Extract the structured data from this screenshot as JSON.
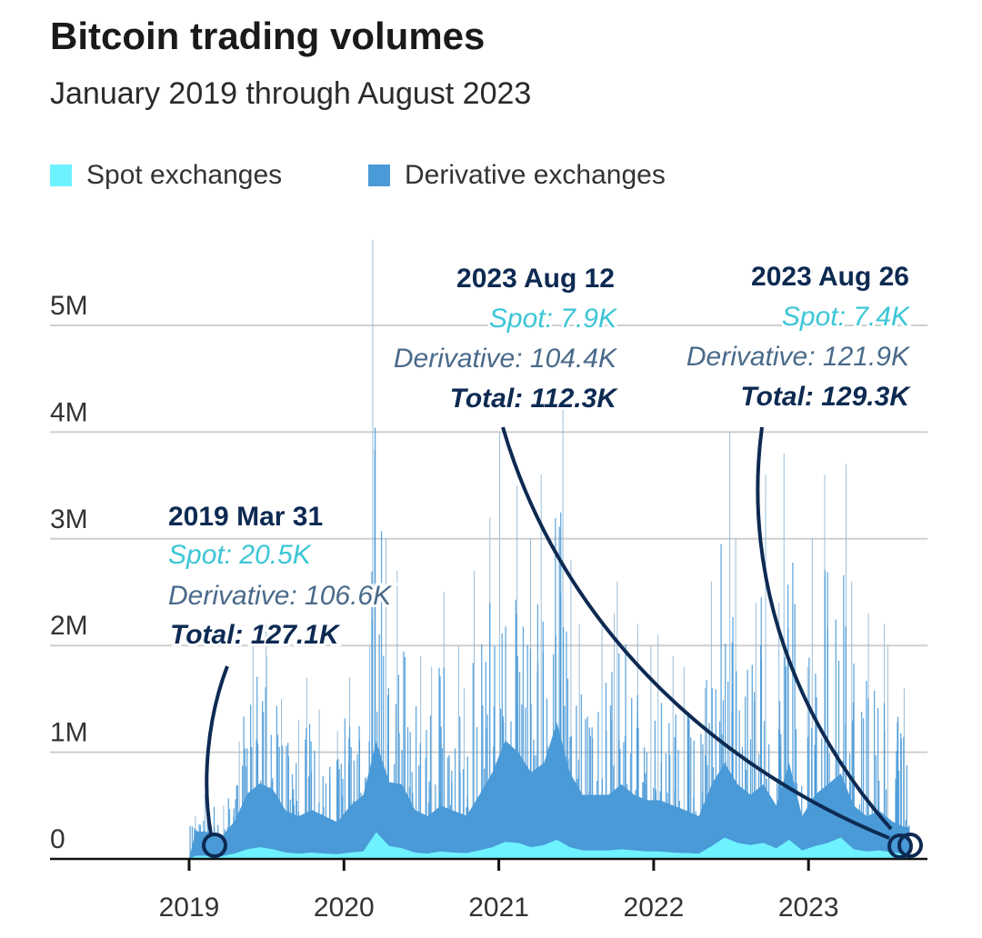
{
  "chart_data": {
    "type": "area",
    "title": "Bitcoin trading volumes",
    "subtitle": "January 2019 through August 2023",
    "stacked": true,
    "legend_position": "top-left",
    "grid": true,
    "ylim": [
      0,
      5500000
    ],
    "y_ticks": [
      {
        "value": 0,
        "label": "0"
      },
      {
        "value": 1000000,
        "label": "1M"
      },
      {
        "value": 2000000,
        "label": "2M"
      },
      {
        "value": 3000000,
        "label": "3M"
      },
      {
        "value": 4000000,
        "label": "4M"
      },
      {
        "value": 5000000,
        "label": "5M"
      }
    ],
    "x_ticks": [
      "2019",
      "2020",
      "2021",
      "2022",
      "2023"
    ],
    "x": [
      "2019-01",
      "2019-02",
      "2019-03",
      "2019-04",
      "2019-05",
      "2019-06",
      "2019-07",
      "2019-08",
      "2019-09",
      "2019-10",
      "2019-11",
      "2019-12",
      "2020-01",
      "2020-02",
      "2020-03",
      "2020-04",
      "2020-05",
      "2020-06",
      "2020-07",
      "2020-08",
      "2020-09",
      "2020-10",
      "2020-11",
      "2020-12",
      "2021-01",
      "2021-02",
      "2021-03",
      "2021-04",
      "2021-05",
      "2021-06",
      "2021-07",
      "2021-08",
      "2021-09",
      "2021-10",
      "2021-11",
      "2021-12",
      "2022-01",
      "2022-02",
      "2022-03",
      "2022-04",
      "2022-05",
      "2022-06",
      "2022-07",
      "2022-08",
      "2022-09",
      "2022-10",
      "2022-11",
      "2022-12",
      "2023-01",
      "2023-02",
      "2023-03",
      "2023-04",
      "2023-05",
      "2023-06",
      "2023-07",
      "2023-08"
    ],
    "series": [
      {
        "name": "Spot exchanges",
        "color": "#6ef2ff",
        "values": [
          30000,
          30000,
          25000,
          50000,
          90000,
          110000,
          90000,
          60000,
          50000,
          60000,
          50000,
          45000,
          60000,
          70000,
          250000,
          120000,
          100000,
          60000,
          50000,
          70000,
          60000,
          55000,
          80000,
          110000,
          160000,
          150000,
          110000,
          130000,
          180000,
          110000,
          80000,
          80000,
          80000,
          90000,
          80000,
          70000,
          70000,
          60000,
          55000,
          50000,
          120000,
          200000,
          150000,
          130000,
          150000,
          100000,
          180000,
          80000,
          120000,
          150000,
          200000,
          90000,
          70000,
          80000,
          60000,
          50000
        ]
      },
      {
        "name": "Derivative exchanges",
        "color": "#4a9ad8",
        "values": [
          230000,
          220000,
          180000,
          300000,
          520000,
          600000,
          560000,
          390000,
          350000,
          400000,
          350000,
          300000,
          440000,
          530000,
          850000,
          600000,
          600000,
          400000,
          350000,
          430000,
          390000,
          350000,
          520000,
          700000,
          950000,
          850000,
          700000,
          770000,
          1100000,
          700000,
          520000,
          520000,
          520000,
          610000,
          520000,
          480000,
          480000,
          440000,
          400000,
          350000,
          580000,
          700000,
          550000,
          470000,
          550000,
          400000,
          720000,
          320000,
          480000,
          550000,
          600000,
          410000,
          330000,
          370000,
          290000,
          250000
        ]
      }
    ],
    "peaks": [
      400000,
      600000,
      500000,
      1100000,
      2000000,
      2200000,
      1900000,
      1500000,
      1300000,
      1700000,
      1400000,
      1200000,
      1700000,
      2000000,
      5800000,
      3000000,
      2700000,
      1900000,
      1800000,
      2500000,
      2000000,
      1600000,
      2700000,
      3200000,
      4000000,
      3500000,
      3000000,
      3600000,
      4300000,
      2800000,
      2200000,
      2200000,
      2300000,
      2600000,
      2200000,
      2000000,
      2100000,
      1900000,
      1800000,
      1600000,
      2600000,
      4000000,
      3000000,
      2400000,
      3600000,
      2400000,
      3800000,
      1800000,
      3000000,
      3600000,
      3700000,
      2600000,
      2300000,
      2200000,
      2000000,
      1600000
    ],
    "annotations": [
      {
        "date": "2019 Mar 31",
        "spot": "Spot: 20.5K",
        "derivative": "Derivative: 106.6K",
        "total": "Total: 127.1K"
      },
      {
        "date": "2023 Aug 12",
        "spot": "Spot: 7.9K",
        "derivative": "Derivative: 104.4K",
        "total": "Total: 112.3K"
      },
      {
        "date": "2023 Aug 26",
        "spot": "Spot: 7.4K",
        "derivative": "Derivative: 121.9K",
        "total": "Total: 129.3K"
      }
    ]
  },
  "legend": [
    {
      "label": "Spot exchanges",
      "color": "#6ef2ff"
    },
    {
      "label": "Derivative exchanges",
      "color": "#4a9ad8"
    }
  ]
}
